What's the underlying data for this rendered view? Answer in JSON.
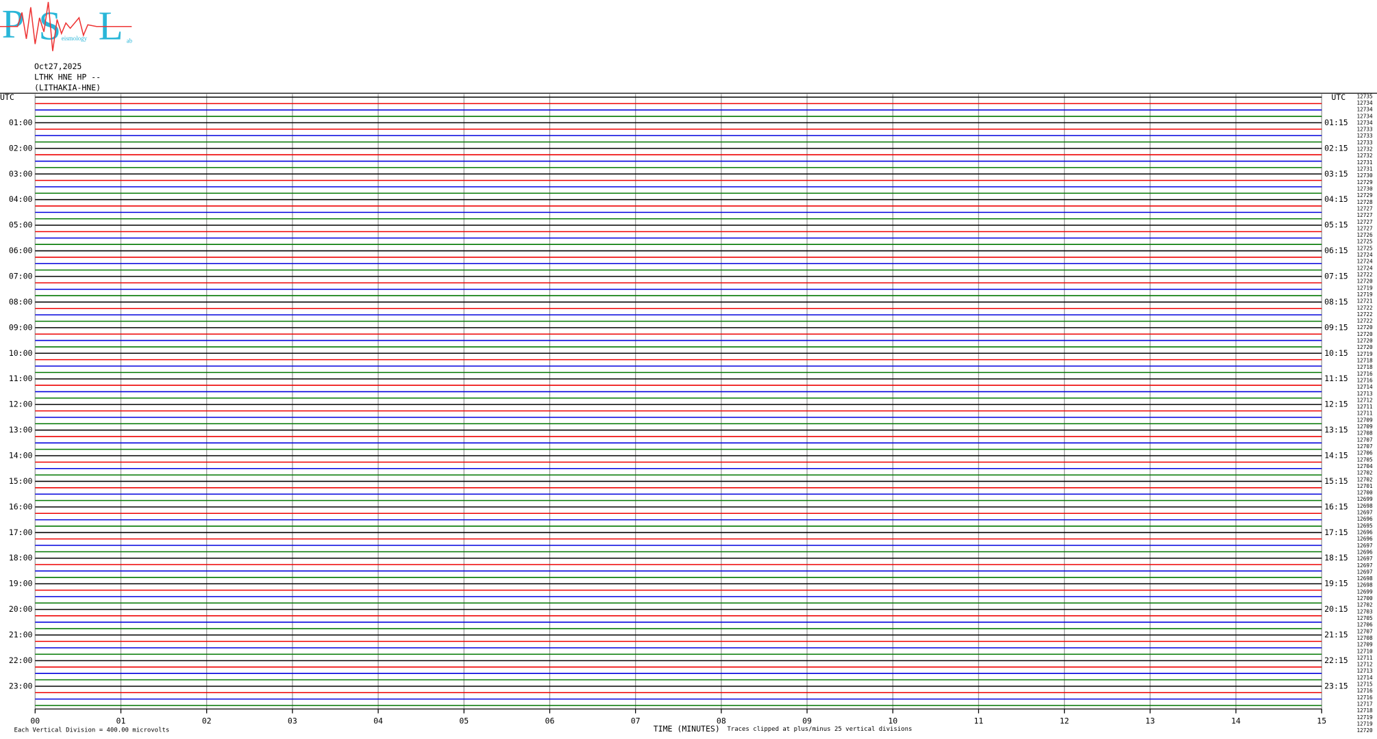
{
  "logo": {
    "letters": [
      "P",
      "S",
      "L"
    ],
    "words": [
      "eismology",
      "ab"
    ]
  },
  "header": {
    "date": "Oct27,2025",
    "station": "LTHK HNE HP --",
    "site": "(LITHAKIA-HNE)"
  },
  "left_utc": "UTC",
  "right_utc": "UTC",
  "left_times": [
    "01:00",
    "02:00",
    "03:00",
    "04:00",
    "05:00",
    "06:00",
    "07:00",
    "08:00",
    "09:00",
    "10:00",
    "11:00",
    "12:00",
    "13:00",
    "14:00",
    "15:00",
    "16:00",
    "17:00",
    "18:00",
    "19:00",
    "20:00",
    "21:00",
    "22:00",
    "23:00"
  ],
  "right_times": [
    "01:15",
    "02:15",
    "03:15",
    "04:15",
    "05:15",
    "06:15",
    "07:15",
    "08:15",
    "09:15",
    "10:15",
    "11:15",
    "12:15",
    "13:15",
    "14:15",
    "15:15",
    "16:15",
    "17:15",
    "18:15",
    "19:15",
    "20:15",
    "21:15",
    "22:15",
    "23:15"
  ],
  "right_counts": [
    "12735",
    "12734",
    "12734",
    "12734",
    "12734",
    "12733",
    "12733",
    "12733",
    "12732",
    "12732",
    "12731",
    "12731",
    "12730",
    "12729",
    "12730",
    "12729",
    "12728",
    "12727",
    "12727",
    "12727",
    "12727",
    "12726",
    "12725",
    "12725",
    "12724",
    "12724",
    "12724",
    "12722",
    "12720",
    "12719",
    "12719",
    "12721",
    "12722",
    "12722",
    "12722",
    "12720",
    "12720",
    "12720",
    "12720",
    "12719",
    "12718",
    "12718",
    "12716",
    "12716",
    "12714",
    "12713",
    "12712",
    "12711",
    "12711",
    "12709",
    "12709",
    "12708",
    "12707",
    "12707",
    "12706",
    "12705",
    "12704",
    "12702",
    "12702",
    "12701",
    "12700",
    "12699",
    "12698",
    "12697",
    "12696",
    "12695",
    "12696",
    "12696",
    "12697",
    "12696",
    "12697",
    "12697",
    "12697",
    "12698",
    "12698",
    "12699",
    "12700",
    "12702",
    "12703",
    "12705",
    "12706",
    "12707",
    "12708",
    "12709",
    "12710",
    "12711",
    "12712",
    "12713",
    "12714",
    "12715",
    "12716",
    "12716",
    "12717",
    "12718",
    "12719",
    "12719",
    "12720"
  ],
  "x_ticks": [
    "00",
    "01",
    "02",
    "03",
    "04",
    "05",
    "06",
    "07",
    "08",
    "09",
    "10",
    "11",
    "12",
    "13",
    "14",
    "15"
  ],
  "footer": {
    "x_title": "TIME (MINUTES)",
    "clip_note": "Traces clipped at plus/minus 25 vertical divisions",
    "division_note": "Each Vertical Division =  400.00 microvolts"
  }
}
